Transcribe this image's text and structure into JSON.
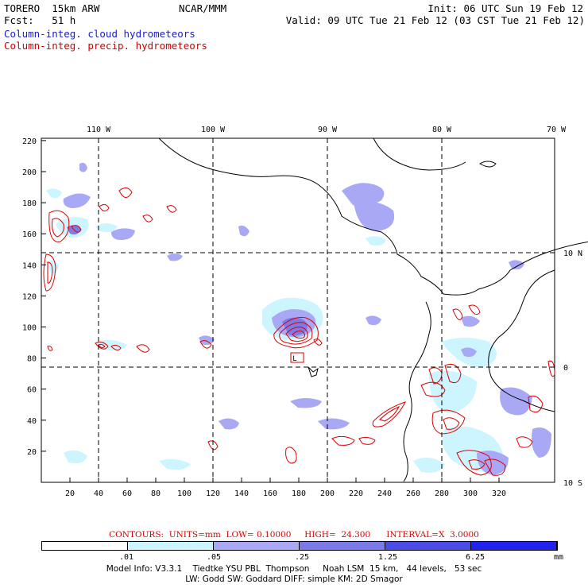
{
  "header": {
    "line1_left": "TORERO  15km ARW",
    "line1_mid": "NCAR/MMM",
    "line1_right": "Init: 06 UTC Sun 19 Feb 12",
    "line2_left": "Fcst:   51 h",
    "line2_right": "Valid: 09 UTC Tue 21 Feb 12 (03 CST Tue 21 Feb 12)",
    "field1": "Column-integ. cloud hydrometeors",
    "field2": "Column-integ. precip. hydrometeors"
  },
  "map": {
    "x_ticks": [
      "20",
      "40",
      "60",
      "80",
      "100",
      "120",
      "140",
      "160",
      "180",
      "200",
      "220",
      "240",
      "260",
      "280",
      "300",
      "320"
    ],
    "y_ticks": [
      "20",
      "40",
      "60",
      "80",
      "100",
      "120",
      "140",
      "160",
      "180",
      "200",
      "220"
    ],
    "lon_labels": [
      "110 W",
      "100 W",
      "90 W",
      "80 W",
      "70 W"
    ],
    "lat_labels": [
      "10 N",
      "0",
      "10 S"
    ],
    "marker_label": "L"
  },
  "contours": {
    "text": "CONTOURS:  UNITS=mm  LOW= 0.10000     HIGH=  24.300      INTERVAL=X  3.0000"
  },
  "colorbar": {
    "labels": [
      ".01",
      ".05",
      ".25",
      "1.25",
      "6.25",
      "mm"
    ],
    "colors": [
      "#ffffff",
      "#ccf5ff",
      "#a8a8f5",
      "#7a7ae8",
      "#4b4be6",
      "#2222ee"
    ]
  },
  "footer": {
    "line1": "Model Info: V3.3.1    Tiedtke YSU PBL  Thompson     Noah LSM  15 km,   44 levels,   53 sec",
    "line2": "LW: Godd SW: Goddard DIFF: simple KM: 2D Smagor"
  },
  "colors": {
    "cloud_light": "#ccf5ff",
    "cloud_mid": "#a8a8f5",
    "cloud_dark": "#7a7ae8",
    "precip_contour": "#dd0000"
  }
}
